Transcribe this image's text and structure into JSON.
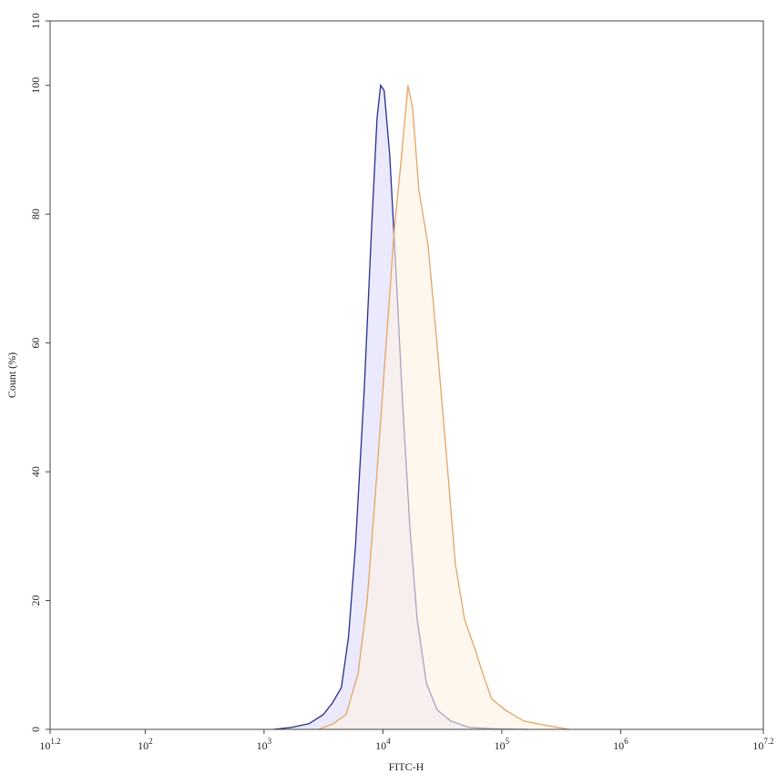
{
  "chart_data": {
    "type": "histogram-overlay",
    "x_label": "FITC-H",
    "y_label": "Count (%)",
    "xscale": "log",
    "xlim": [
      15.8489,
      15848932
    ],
    "xticks": [
      {
        "value": 15.8489,
        "label": "10",
        "exponent": "1.2"
      },
      {
        "value": 100,
        "label": "10",
        "exponent": "2"
      },
      {
        "value": 1000,
        "label": "10",
        "exponent": "3"
      },
      {
        "value": 10000,
        "label": "10",
        "exponent": "4"
      },
      {
        "value": 100000,
        "label": "10",
        "exponent": "5"
      },
      {
        "value": 1000000,
        "label": "10",
        "exponent": "6"
      },
      {
        "value": 15848932,
        "label": "10",
        "exponent": "7.2"
      }
    ],
    "ylim": [
      0,
      110
    ],
    "yticks": [
      0,
      20,
      40,
      60,
      80,
      100,
      110
    ],
    "series": [
      {
        "stroke": "#2a2d8c",
        "color": "#e6e6fb",
        "x": [
          1195,
          1700,
          2400,
          3150,
          3760,
          4470,
          5130,
          5870,
          6950,
          8030,
          8920,
          9560,
          10240,
          11400,
          12900,
          14600,
          16860,
          19400,
          23200,
          28600,
          37200,
          53100,
          82400,
          166000
        ],
        "values": [
          0,
          0.3,
          0.9,
          2.3,
          4.1,
          6.5,
          14.3,
          28.4,
          52.5,
          77.9,
          94.9,
          100,
          99.2,
          89.2,
          70.9,
          51,
          31.3,
          17.1,
          7.2,
          3,
          1.3,
          0.3,
          0.1,
          0
        ]
      },
      {
        "stroke": "#e4a465",
        "color": "#fdf1e3",
        "x": [
          2880,
          3760,
          4890,
          6170,
          7360,
          8780,
          10470,
          12500,
          14130,
          16240,
          17800,
          20100,
          24000,
          28600,
          34200,
          40700,
          48600,
          60100,
          69300,
          82400,
          107000,
          153000,
          238000,
          369000
        ],
        "values": [
          0,
          0.8,
          2.3,
          8.6,
          19.9,
          38.3,
          58.1,
          77.9,
          87.8,
          100,
          96.3,
          83.6,
          75.1,
          59.5,
          42.6,
          25.6,
          17.1,
          12.2,
          8.6,
          4.7,
          3,
          1.3,
          0.6,
          0
        ]
      }
    ]
  }
}
